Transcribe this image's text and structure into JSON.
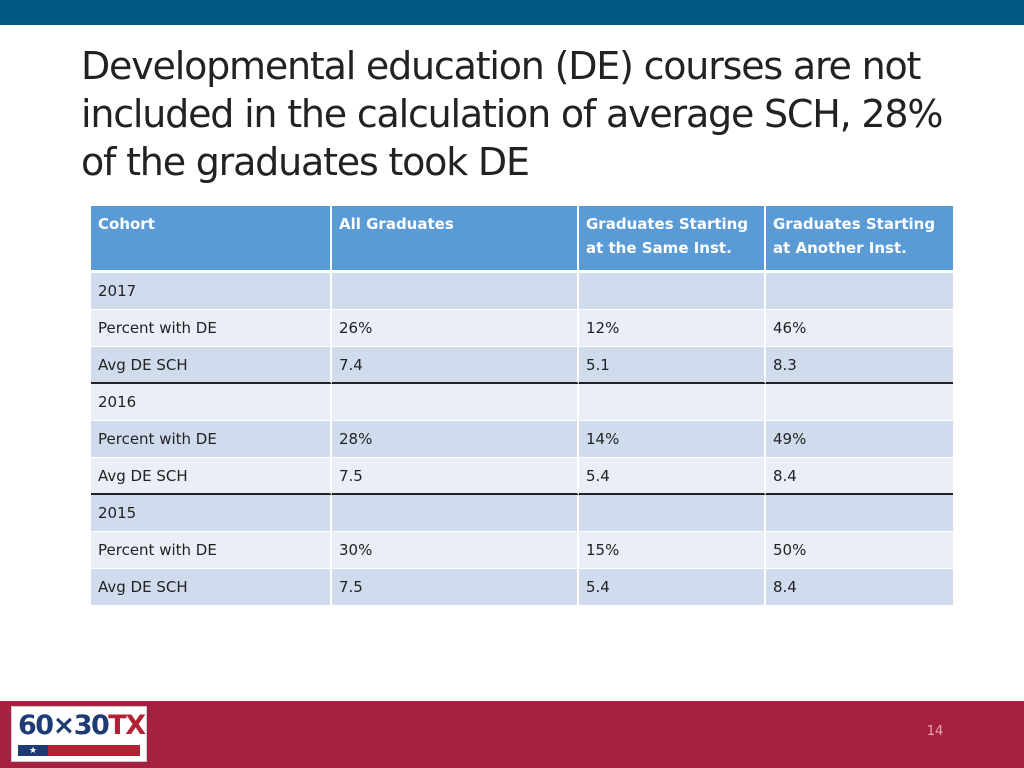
{
  "slide": {
    "title": "Developmental education (DE) courses are not included in the calculation of average SCH, 28% of the graduates took DE",
    "page_number": "14",
    "colors": {
      "top_bar": "#005a83",
      "bottom_bar": "#a6213f",
      "header": "#5b9bd5"
    }
  },
  "table": {
    "headers": [
      "Cohort",
      "All Graduates",
      "Graduates Starting at the Same  Inst.",
      "Graduates Starting at Another Inst."
    ],
    "groups": [
      {
        "year": "2017",
        "rows": [
          {
            "label": "Percent with DE",
            "values": [
              "26%",
              "12%",
              "46%"
            ]
          },
          {
            "label": "Avg  DE SCH",
            "values": [
              "7.4",
              "5.1",
              "8.3"
            ]
          }
        ]
      },
      {
        "year": "2016",
        "rows": [
          {
            "label": "Percent with DE",
            "values": [
              "28%",
              "14%",
              "49%"
            ]
          },
          {
            "label": "Avg  DE SCH",
            "values": [
              "7.5",
              "5.4",
              "8.4"
            ]
          }
        ]
      },
      {
        "year": "2015",
        "rows": [
          {
            "label": "Percent with DE",
            "values": [
              "30%",
              "15%",
              "50%"
            ]
          },
          {
            "label": "Avg  DE SCH",
            "values": [
              "7.5",
              "5.4",
              "8.4"
            ]
          }
        ]
      }
    ]
  },
  "logo": {
    "text_main": "60×30",
    "text_accent": "TX",
    "star": "★",
    "icon": "60x30tx-logo-icon"
  }
}
